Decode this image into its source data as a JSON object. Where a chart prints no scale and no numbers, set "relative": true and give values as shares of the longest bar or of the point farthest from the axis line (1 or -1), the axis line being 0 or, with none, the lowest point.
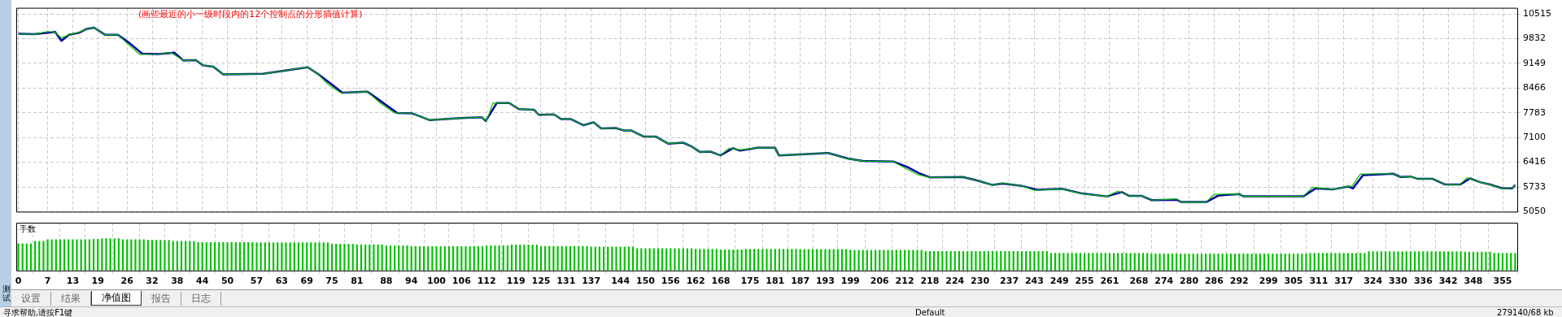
{
  "chart_data": [
    {
      "type": "line",
      "title": "(画些最近的小一级时段内的12个控制点的分形插值计算)",
      "marker": "none",
      "grid": true,
      "tick_labels": "y",
      "xlim": [
        -0.5,
        358.5
      ],
      "xticks": [
        0,
        7,
        13,
        19,
        26,
        32,
        38,
        44,
        50,
        57,
        63,
        69,
        75,
        81,
        88,
        94,
        100,
        106,
        112,
        119,
        125,
        131,
        137,
        144,
        150,
        156,
        162,
        168,
        175,
        181,
        187,
        193,
        199,
        206,
        212,
        218,
        224,
        230,
        237,
        243,
        249,
        255,
        261,
        268,
        274,
        280,
        286,
        292,
        299,
        305,
        311,
        317,
        324,
        330,
        336,
        342,
        348,
        355
      ],
      "ylim": [
        5050,
        10685
      ],
      "yticks": [
        5050,
        5733,
        6416,
        7100,
        7783,
        8466,
        9149,
        9832,
        10515
      ],
      "series": [
        {
          "color": "#00c000",
          "x": [
            0,
            3.8,
            7,
            8.8,
            10.3,
            12.1,
            14.5,
            16.3,
            18.1,
            20.7,
            23.8,
            26,
            29,
            33.5,
            36.5,
            39.5,
            42.4,
            44.2,
            46.6,
            49,
            58.5,
            63.9,
            69.2,
            71.6,
            74,
            77,
            83.5,
            86.5,
            90,
            94.2,
            98.3,
            106,
            110.8,
            112,
            113.5,
            117.4,
            119.7,
            123.3,
            124.5,
            128.1,
            129.8,
            132.2,
            135.2,
            137.6,
            139.4,
            142.9,
            144.7,
            146.5,
            149.5,
            152.4,
            155.4,
            159,
            160.8,
            163.1,
            165.5,
            167.9,
            170,
            172.6,
            176.8,
            181,
            181.9,
            193.7,
            198,
            202,
            209.2,
            212,
            215,
            218.1,
            225.8,
            228.8,
            233,
            235.4,
            240.1,
            243,
            249.6,
            254,
            260.3,
            263,
            265.7,
            268.7,
            271.1,
            277,
            278.2,
            284.1,
            286,
            291.9,
            293.1,
            307.3,
            309.5,
            314.5,
            318.1,
            319,
            321,
            328.8,
            330.6,
            333,
            334.7,
            338.3,
            341.3,
            344.8,
            346.5,
            349.6,
            352,
            354.9,
            357.3,
            358
          ],
          "values": [
            9968,
            9955,
            10030,
            10007,
            9850,
            9942,
            10010,
            10098,
            10137,
            9942,
            9942,
            9707,
            9400,
            9407,
            9447,
            9225,
            9238,
            9095,
            9056,
            8847,
            8860,
            8951,
            9043,
            8860,
            8580,
            8339,
            8365,
            8060,
            7779,
            7766,
            7583,
            7635,
            7661,
            7557,
            8052,
            8052,
            7883,
            7870,
            7727,
            7740,
            7609,
            7609,
            7440,
            7518,
            7349,
            7362,
            7297,
            7297,
            7127,
            7127,
            6932,
            6958,
            6867,
            6697,
            6710,
            6606,
            6802,
            6760,
            6815,
            6815,
            6606,
            6671,
            6515,
            6450,
            6437,
            6260,
            6080,
            5995,
            6008,
            5930,
            5787,
            5840,
            5759,
            5640,
            5681,
            5551,
            5472,
            5620,
            5485,
            5485,
            5368,
            5400,
            5316,
            5316,
            5530,
            5538,
            5472,
            5472,
            5720,
            5668,
            5746,
            5760,
            6090,
            6098,
            6008,
            6021,
            5956,
            5956,
            5799,
            5799,
            5990,
            5865,
            5799,
            5680,
            5694,
            5787
          ]
        },
        {
          "color": "#0000a0",
          "x": [
            0,
            3.8,
            8,
            8.8,
            10.3,
            12.1,
            14.5,
            16.3,
            18.1,
            20.7,
            23.8,
            26.6,
            29.6,
            33.5,
            37.3,
            39.5,
            42.4,
            44.2,
            46.6,
            49,
            58.5,
            63.9,
            69.2,
            71.6,
            74.6,
            77.5,
            83.5,
            87,
            90.6,
            94.2,
            98.3,
            106,
            110.8,
            111.8,
            114.4,
            117.4,
            119.7,
            123.3,
            124.5,
            128.1,
            129.8,
            132.2,
            135.2,
            137.6,
            139.4,
            142.9,
            144.7,
            146.5,
            149.5,
            152.4,
            155.4,
            159,
            160.8,
            163.1,
            165.5,
            167.9,
            170.9,
            172.6,
            176.8,
            181,
            181.9,
            193.7,
            198.5,
            202,
            209.2,
            212.7,
            215.7,
            218.1,
            225.8,
            228.8,
            233,
            235.4,
            240.1,
            243.7,
            249.6,
            254.4,
            260.3,
            263.9,
            265.7,
            268.7,
            271.1,
            277,
            278.2,
            284.1,
            287.1,
            291.9,
            293.1,
            307.3,
            310.3,
            314.5,
            318.1,
            319.2,
            321.6,
            328.8,
            330.6,
            333,
            334.7,
            338.3,
            341.3,
            344.8,
            347.2,
            349.6,
            352,
            354.9,
            357.3,
            358
          ],
          "values": [
            9968,
            9955,
            10007,
            10020,
            9772,
            9942,
            9994,
            10098,
            10137,
            9942,
            9942,
            9707,
            9420,
            9407,
            9447,
            9225,
            9238,
            9095,
            9056,
            8847,
            8860,
            8951,
            9043,
            8860,
            8600,
            8339,
            8365,
            8078,
            7779,
            7766,
            7583,
            7635,
            7661,
            7557,
            8052,
            8052,
            7883,
            7870,
            7727,
            7740,
            7609,
            7609,
            7440,
            7518,
            7349,
            7362,
            7297,
            7297,
            7127,
            7127,
            6932,
            6958,
            6867,
            6697,
            6710,
            6606,
            6802,
            6736,
            6815,
            6815,
            6606,
            6671,
            6515,
            6450,
            6437,
            6280,
            6098,
            5995,
            6008,
            5930,
            5787,
            5826,
            5759,
            5655,
            5681,
            5551,
            5472,
            5590,
            5485,
            5485,
            5368,
            5381,
            5316,
            5316,
            5498,
            5538,
            5472,
            5472,
            5694,
            5668,
            5746,
            5694,
            6060,
            6098,
            6008,
            6021,
            5956,
            5956,
            5799,
            5799,
            5969,
            5865,
            5799,
            5694,
            5694,
            5787
          ]
        }
      ],
      "annotations": [
        "测试",
        "设置",
        "结果",
        "净值图",
        "报告",
        "日志",
        "寻求帮助,请按F1键",
        "Default",
        "279140/68 kb"
      ]
    },
    {
      "type": "bar",
      "ylabel": "手数",
      "relative": true,
      "color": "#00c000",
      "grid": "x",
      "tick_labels": "x",
      "xlim": [
        -0.5,
        358.5
      ],
      "xticks": [
        0,
        7,
        13,
        19,
        26,
        32,
        38,
        44,
        50,
        57,
        63,
        69,
        75,
        81,
        88,
        94,
        100,
        106,
        112,
        119,
        125,
        131,
        137,
        144,
        150,
        156,
        162,
        168,
        175,
        181,
        187,
        193,
        199,
        206,
        212,
        218,
        224,
        230,
        237,
        243,
        249,
        255,
        261,
        268,
        274,
        280,
        286,
        292,
        299,
        305,
        311,
        317,
        324,
        330,
        336,
        342,
        348,
        355
      ],
      "x": [
        0,
        1,
        2,
        3,
        4,
        5,
        6,
        7,
        8,
        9,
        10,
        11,
        12,
        13,
        14,
        15,
        16,
        17,
        18,
        19,
        20,
        21,
        22,
        23,
        24,
        25,
        26,
        27,
        28,
        29,
        30,
        31,
        32,
        33,
        34,
        35,
        36,
        37,
        38,
        39,
        40,
        41,
        42,
        43,
        44,
        45,
        46,
        47,
        48,
        49,
        50,
        51,
        52,
        53,
        54,
        55,
        56,
        57,
        58,
        59,
        60,
        61,
        62,
        63,
        64,
        65,
        66,
        67,
        68,
        69,
        70,
        71,
        72,
        73,
        74,
        75,
        76,
        77,
        78,
        79,
        80,
        81,
        82,
        83,
        84,
        85,
        86,
        87,
        88,
        89,
        90,
        91,
        92,
        93,
        94,
        95,
        96,
        97,
        98,
        99,
        100,
        101,
        102,
        103,
        104,
        105,
        106,
        107,
        108,
        109,
        110,
        111,
        112,
        113,
        114,
        115,
        116,
        117,
        118,
        119,
        120,
        121,
        122,
        123,
        124,
        125,
        126,
        127,
        128,
        129,
        130,
        131,
        132,
        133,
        134,
        135,
        136,
        137,
        138,
        139,
        140,
        141,
        142,
        143,
        144,
        145,
        146,
        147,
        148,
        149,
        150,
        151,
        152,
        153,
        154,
        155,
        156,
        157,
        158,
        159,
        160,
        161,
        162,
        163,
        164,
        165,
        166,
        167,
        168,
        169,
        170,
        171,
        172,
        173,
        174,
        175,
        176,
        177,
        178,
        179,
        180,
        181,
        182,
        183,
        184,
        185,
        186,
        187,
        188,
        189,
        190,
        191,
        192,
        193,
        194,
        195,
        196,
        197,
        198,
        199,
        200,
        201,
        202,
        203,
        204,
        205,
        206,
        207,
        208,
        209,
        210,
        211,
        212,
        213,
        214,
        215,
        216,
        217,
        218,
        219,
        220,
        221,
        222,
        223,
        224,
        225,
        226,
        227,
        228,
        229,
        230,
        231,
        232,
        233,
        234,
        235,
        236,
        237,
        238,
        239,
        240,
        241,
        242,
        243,
        244,
        245,
        246,
        247,
        248,
        249,
        250,
        251,
        252,
        253,
        254,
        255,
        256,
        257,
        258,
        259,
        260,
        261,
        262,
        263,
        264,
        265,
        266,
        267,
        268,
        269,
        270,
        271,
        272,
        273,
        274,
        275,
        276,
        277,
        278,
        279,
        280,
        281,
        282,
        283,
        284,
        285,
        286,
        287,
        288,
        289,
        290,
        291,
        292,
        293,
        294,
        295,
        296,
        297,
        298,
        299,
        300,
        301,
        302,
        303,
        304,
        305,
        306,
        307,
        308,
        309,
        310,
        311,
        312,
        313,
        314,
        315,
        316,
        317,
        318,
        319,
        320,
        321,
        322,
        323,
        324,
        325,
        326,
        327,
        328,
        329,
        330,
        331,
        332,
        333,
        334,
        335,
        336,
        337,
        338,
        339,
        340,
        341,
        342,
        343,
        344,
        345,
        346,
        347,
        348,
        349,
        350,
        351,
        352,
        353,
        354,
        355,
        356,
        357,
        358
      ],
      "values": [
        0.84,
        0.84,
        0.84,
        0.84,
        0.92,
        0.92,
        0.92,
        0.97,
        0.97,
        0.97,
        0.97,
        0.97,
        0.97,
        0.97,
        0.97,
        0.97,
        0.97,
        0.97,
        0.98,
        0.98,
        1,
        1,
        1,
        1,
        1,
        0.97,
        0.97,
        0.97,
        0.97,
        0.97,
        0.97,
        0.95,
        0.95,
        0.95,
        0.95,
        0.95,
        0.95,
        0.92,
        0.92,
        0.92,
        0.92,
        0.92,
        0.92,
        0.88,
        0.88,
        0.88,
        0.88,
        0.88,
        0.88,
        0.88,
        0.88,
        0.88,
        0.88,
        0.88,
        0.88,
        0.88,
        0.88,
        0.87,
        0.87,
        0.87,
        0.87,
        0.87,
        0.87,
        0.87,
        0.87,
        0.87,
        0.87,
        0.87,
        0.87,
        0.87,
        0.87,
        0.87,
        0.87,
        0.87,
        0.87,
        0.83,
        0.83,
        0.83,
        0.83,
        0.83,
        0.83,
        0.81,
        0.81,
        0.81,
        0.81,
        0.81,
        0.81,
        0.81,
        0.78,
        0.78,
        0.78,
        0.78,
        0.78,
        0.78,
        0.75,
        0.75,
        0.75,
        0.75,
        0.75,
        0.75,
        0.75,
        0.75,
        0.75,
        0.75,
        0.75,
        0.75,
        0.75,
        0.75,
        0.75,
        0.75,
        0.75,
        0.75,
        0.78,
        0.78,
        0.78,
        0.78,
        0.78,
        0.78,
        0.8,
        0.8,
        0.8,
        0.8,
        0.8,
        0.8,
        0.8,
        0.76,
        0.76,
        0.76,
        0.76,
        0.76,
        0.76,
        0.76,
        0.76,
        0.76,
        0.76,
        0.76,
        0.76,
        0.74,
        0.74,
        0.74,
        0.74,
        0.74,
        0.74,
        0.74,
        0.74,
        0.74,
        0.74,
        0.74,
        0.69,
        0.69,
        0.69,
        0.69,
        0.69,
        0.69,
        0.69,
        0.69,
        0.69,
        0.69,
        0.69,
        0.69,
        0.69,
        0.69,
        0.67,
        0.67,
        0.67,
        0.67,
        0.67,
        0.67,
        0.65,
        0.65,
        0.65,
        0.65,
        0.65,
        0.65,
        0.67,
        0.67,
        0.67,
        0.67,
        0.67,
        0.67,
        0.67,
        0.67,
        0.67,
        0.67,
        0.67,
        0.67,
        0.67,
        0.66,
        0.66,
        0.66,
        0.66,
        0.66,
        0.66,
        0.66,
        0.66,
        0.66,
        0.66,
        0.66,
        0.66,
        0.64,
        0.64,
        0.64,
        0.64,
        0.64,
        0.64,
        0.64,
        0.64,
        0.64,
        0.64,
        0.64,
        0.64,
        0.64,
        0.64,
        0.64,
        0.64,
        0.64,
        0.64,
        0.6,
        0.6,
        0.6,
        0.6,
        0.6,
        0.6,
        0.6,
        0.6,
        0.6,
        0.6,
        0.6,
        0.6,
        0.6,
        0.6,
        0.6,
        0.6,
        0.6,
        0.6,
        0.6,
        0.6,
        0.6,
        0.6,
        0.6,
        0.6,
        0.6,
        0.6,
        0.6,
        0.6,
        0.6,
        0.6,
        0.54,
        0.54,
        0.54,
        0.54,
        0.54,
        0.54,
        0.54,
        0.54,
        0.54,
        0.54,
        0.54,
        0.54,
        0.54,
        0.54,
        0.54,
        0.54,
        0.54,
        0.54,
        0.54,
        0.54,
        0.54,
        0.54,
        0.54,
        0.54,
        0.52,
        0.52,
        0.52,
        0.52,
        0.52,
        0.52,
        0.52,
        0.52,
        0.52,
        0.52,
        0.52,
        0.52,
        0.52,
        0.52,
        0.52,
        0.52,
        0.52,
        0.52,
        0.52,
        0.52,
        0.52,
        0.52,
        0.52,
        0.52,
        0.52,
        0.52,
        0.52,
        0.52,
        0.52,
        0.52,
        0.52,
        0.52,
        0.52,
        0.52,
        0.52,
        0.52,
        0.52,
        0.52,
        0.54,
        0.54,
        0.54,
        0.54,
        0.54,
        0.54,
        0.54,
        0.54,
        0.54,
        0.54,
        0.54,
        0.54,
        0.54,
        0.54,
        0.59,
        0.59,
        0.59,
        0.59,
        0.59,
        0.59,
        0.59,
        0.59,
        0.59,
        0.59,
        0.59,
        0.59,
        0.59,
        0.59,
        0.59,
        0.59,
        0.59,
        0.59,
        0.59,
        0.59,
        0.59,
        0.59,
        0.59,
        0.58,
        0.58,
        0.58,
        0.58,
        0.58,
        0.58,
        0.58,
        0.54,
        0.54,
        0.54,
        0.54,
        0.54,
        0.54
      ]
    }
  ]
}
